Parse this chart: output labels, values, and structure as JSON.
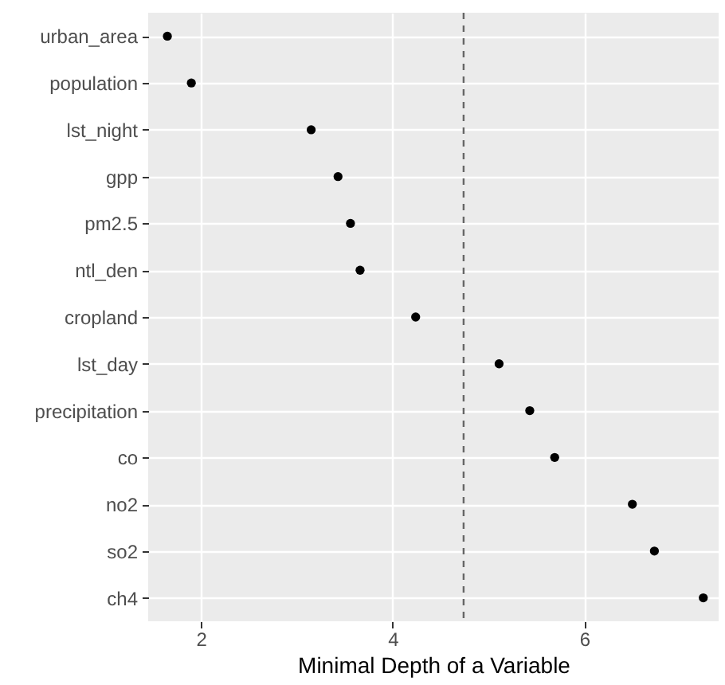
{
  "chart_data": {
    "type": "scatter",
    "orientation": "horizontal",
    "xlabel": "Minimal Depth of a Variable",
    "categories": [
      "urban_area",
      "population",
      "lst_night",
      "gpp",
      "pm2.5",
      "ntl_den",
      "cropland",
      "lst_day",
      "precipitation",
      "co",
      "no2",
      "so2",
      "ch4"
    ],
    "values": [
      1.65,
      1.9,
      3.15,
      3.43,
      3.56,
      3.66,
      4.24,
      5.11,
      5.43,
      5.69,
      6.5,
      6.73,
      7.24
    ],
    "color": "#000000",
    "marker": "circle",
    "xlim": [
      1.45,
      7.4
    ],
    "xticks": [
      2,
      4,
      6
    ],
    "grid": true,
    "ref_lines": [
      {
        "axis": "x",
        "value": 4.74,
        "color": "#666666",
        "line_style": "dashed"
      }
    ]
  }
}
